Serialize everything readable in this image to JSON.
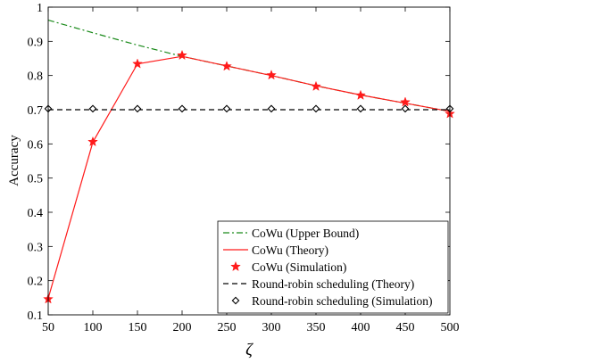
{
  "chart_data": {
    "type": "line",
    "title": "",
    "xlabel": "ζ",
    "ylabel": "Accuracy",
    "xlim": [
      50,
      500
    ],
    "ylim": [
      0.1,
      1
    ],
    "xticks": [
      50,
      100,
      150,
      200,
      250,
      300,
      350,
      400,
      450,
      500
    ],
    "yticks": [
      0.1,
      0.2,
      0.3,
      0.4,
      0.5,
      0.6,
      0.7,
      0.8,
      0.9,
      1
    ],
    "ytick_labels": [
      "0.1",
      "0.2",
      "0.3",
      "0.4",
      "0.5",
      "0.6",
      "0.7",
      "0.8",
      "0.9",
      "1"
    ],
    "grid": false,
    "legend_position": "bottom-right",
    "series": [
      {
        "name": "CoWu (Upper Bound)",
        "style": "dashdot",
        "marker": "none",
        "color": "#1a8a1a",
        "x": [
          50,
          100,
          150,
          200,
          250,
          300,
          350,
          400,
          450,
          500
        ],
        "y": [
          0.962,
          0.925,
          0.889,
          0.856,
          0.828,
          0.8,
          0.77,
          0.743,
          0.719,
          0.695
        ]
      },
      {
        "name": "CoWu (Theory)",
        "style": "solid",
        "marker": "none",
        "color": "#ff1a1a",
        "x": [
          50,
          100,
          150,
          200,
          250,
          300,
          350,
          400,
          450,
          500
        ],
        "y": [
          0.148,
          0.605,
          0.834,
          0.856,
          0.828,
          0.8,
          0.77,
          0.743,
          0.719,
          0.695
        ]
      },
      {
        "name": "CoWu (Simulation)",
        "style": "none",
        "marker": "star",
        "color": "#ff1a1a",
        "x": [
          50,
          100,
          150,
          200,
          250,
          300,
          350,
          400,
          450,
          500
        ],
        "y": [
          0.146,
          0.606,
          0.834,
          0.859,
          0.827,
          0.801,
          0.768,
          0.742,
          0.722,
          0.688
        ]
      },
      {
        "name": "Round-robin scheduling (Theory)",
        "style": "dashed",
        "marker": "none",
        "color": "#000000",
        "x": [
          50,
          100,
          150,
          200,
          250,
          300,
          350,
          400,
          450,
          500
        ],
        "y": [
          0.7,
          0.7,
          0.7,
          0.7,
          0.7,
          0.7,
          0.7,
          0.7,
          0.7,
          0.7
        ]
      },
      {
        "name": "Round-robin scheduling (Simulation)",
        "style": "none",
        "marker": "diamond",
        "color": "#000000",
        "x": [
          50,
          100,
          150,
          200,
          250,
          300,
          350,
          400,
          450,
          500
        ],
        "y": [
          0.703,
          0.703,
          0.703,
          0.703,
          0.703,
          0.703,
          0.703,
          0.703,
          0.703,
          0.703
        ]
      }
    ]
  }
}
